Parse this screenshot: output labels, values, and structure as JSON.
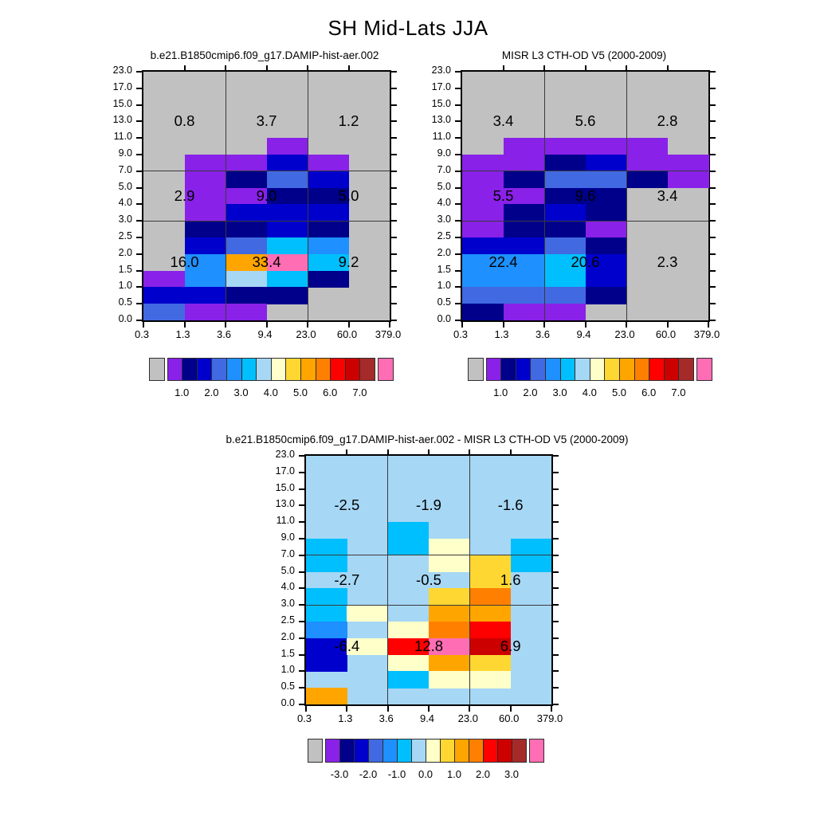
{
  "main_title": "SH Mid-Lats JJA",
  "palette": {
    "gray": "#C1C1C1",
    "purple": "#8921E8",
    "navy": "#00008B",
    "blue": "#0000CD",
    "royal": "#4169E1",
    "dodger": "#1E90FF",
    "deepsky": "#00BFFF",
    "lightblue": "#A6D7F5",
    "cream": "#FFFFC9",
    "gold": "#FFD732",
    "orange": "#FFA500",
    "darkorange": "#FF8000",
    "red": "#FE0000",
    "red3": "#CD0000",
    "brown": "#A52A2A",
    "pink": "#FF6EB4"
  },
  "colorbar_order": [
    "gray",
    "purple",
    "navy",
    "blue",
    "royal",
    "dodger",
    "deepsky",
    "lightblue",
    "cream",
    "gold",
    "orange",
    "darkorange",
    "red",
    "red3",
    "brown",
    "pink"
  ],
  "axes": {
    "x_ticks": [
      "0.3",
      "1.3",
      "3.6",
      "9.4",
      "23.0",
      "60.0",
      "379.0"
    ],
    "y_ticks": [
      "23.0",
      "17.0",
      "15.0",
      "13.0",
      "11.0",
      "9.0",
      "7.0",
      "5.0",
      "4.0",
      "3.0",
      "2.5",
      "2.0",
      "1.5",
      "1.0",
      "0.5",
      "0.0"
    ],
    "x_bin_edges": [
      0.3,
      1.3,
      3.6,
      9.4,
      23.0,
      60.0,
      379.0
    ],
    "y_bin_edges_bottom_up": [
      0.0,
      0.5,
      1.0,
      1.5,
      2.0,
      2.5,
      3.0,
      4.0,
      5.0,
      7.0,
      9.0,
      11.0,
      13.0,
      15.0,
      17.0,
      23.0
    ]
  },
  "chart_data": [
    {
      "type": "heatmap",
      "title": "b.e21.B1850cmip6.f09_g17.DAMIP-hist-aer.002",
      "background": "gray",
      "grid_rows_top_to_bottom": [
        [
          "gray",
          "gray",
          "gray",
          "gray",
          "gray",
          "gray"
        ],
        [
          "gray",
          "gray",
          "gray",
          "gray",
          "gray",
          "gray"
        ],
        [
          "gray",
          "gray",
          "gray",
          "gray",
          "gray",
          "gray"
        ],
        [
          "gray",
          "gray",
          "gray",
          "gray",
          "gray",
          "gray"
        ],
        [
          "gray",
          "gray",
          "gray",
          "purple",
          "gray",
          "gray"
        ],
        [
          "gray",
          "purple",
          "purple",
          "blue",
          "purple",
          "gray"
        ],
        [
          "gray",
          "purple",
          "navy",
          "royal",
          "blue",
          "gray"
        ],
        [
          "gray",
          "purple",
          "purple",
          "navy",
          "navy",
          "gray"
        ],
        [
          "gray",
          "purple",
          "blue",
          "blue",
          "blue",
          "gray"
        ],
        [
          "gray",
          "navy",
          "navy",
          "blue",
          "navy",
          "gray"
        ],
        [
          "gray",
          "blue",
          "royal",
          "deepsky",
          "dodger",
          "gray"
        ],
        [
          "gray",
          "dodger",
          "orange",
          "pink",
          "deepsky",
          "gray"
        ],
        [
          "purple",
          "dodger",
          "lightblue",
          "deepsky",
          "navy",
          "gray"
        ],
        [
          "blue",
          "blue",
          "navy",
          "navy",
          "gray",
          "gray"
        ],
        [
          "royal",
          "purple",
          "purple",
          "gray",
          "gray",
          "gray"
        ]
      ],
      "overlays": [
        {
          "values": [
            "0.8",
            "3.7",
            "1.2"
          ]
        },
        {
          "values": [
            "2.9",
            "9.0",
            "5.0"
          ]
        },
        {
          "values": [
            "16.0",
            "33.4",
            "9.2"
          ]
        }
      ],
      "colorbar_labels": [
        "1.0",
        "2.0",
        "3.0",
        "4.0",
        "5.0",
        "6.0",
        "7.0"
      ]
    },
    {
      "type": "heatmap",
      "title": "MISR L3 CTH-OD V5 (2000-2009)",
      "background": "gray",
      "grid_rows_top_to_bottom": [
        [
          "gray",
          "gray",
          "gray",
          "gray",
          "gray",
          "gray"
        ],
        [
          "gray",
          "gray",
          "gray",
          "gray",
          "gray",
          "gray"
        ],
        [
          "gray",
          "gray",
          "gray",
          "gray",
          "gray",
          "gray"
        ],
        [
          "gray",
          "gray",
          "gray",
          "gray",
          "gray",
          "gray"
        ],
        [
          "gray",
          "purple",
          "purple",
          "purple",
          "purple",
          "gray"
        ],
        [
          "purple",
          "purple",
          "navy",
          "blue",
          "purple",
          "purple"
        ],
        [
          "purple",
          "navy",
          "royal",
          "royal",
          "navy",
          "purple"
        ],
        [
          "purple",
          "purple",
          "navy",
          "navy",
          "gray",
          "gray"
        ],
        [
          "purple",
          "navy",
          "blue",
          "navy",
          "gray",
          "gray"
        ],
        [
          "purple",
          "navy",
          "navy",
          "purple",
          "gray",
          "gray"
        ],
        [
          "blue",
          "blue",
          "royal",
          "navy",
          "gray",
          "gray"
        ],
        [
          "dodger",
          "dodger",
          "deepsky",
          "blue",
          "gray",
          "gray"
        ],
        [
          "dodger",
          "dodger",
          "deepsky",
          "blue",
          "gray",
          "gray"
        ],
        [
          "royal",
          "royal",
          "royal",
          "navy",
          "gray",
          "gray"
        ],
        [
          "navy",
          "purple",
          "purple",
          "gray",
          "gray",
          "gray"
        ]
      ],
      "overlays": [
        {
          "values": [
            "3.4",
            "5.6",
            "2.8"
          ]
        },
        {
          "values": [
            "5.5",
            "9.6",
            "3.4"
          ]
        },
        {
          "values": [
            "22.4",
            "20.6",
            "2.3"
          ]
        }
      ],
      "colorbar_labels": [
        "1.0",
        "2.0",
        "3.0",
        "4.0",
        "5.0",
        "6.0",
        "7.0"
      ]
    },
    {
      "type": "heatmap",
      "title": "b.e21.B1850cmip6.f09_g17.DAMIP-hist-aer.002 - MISR L3 CTH-OD V5 (2000-2009)",
      "background": "lightblue",
      "grid_rows_top_to_bottom": [
        [
          "lightblue",
          "lightblue",
          "lightblue",
          "lightblue",
          "lightblue",
          "lightblue"
        ],
        [
          "lightblue",
          "lightblue",
          "lightblue",
          "lightblue",
          "lightblue",
          "lightblue"
        ],
        [
          "lightblue",
          "lightblue",
          "lightblue",
          "lightblue",
          "lightblue",
          "lightblue"
        ],
        [
          "lightblue",
          "lightblue",
          "lightblue",
          "lightblue",
          "lightblue",
          "lightblue"
        ],
        [
          "lightblue",
          "lightblue",
          "deepsky",
          "lightblue",
          "lightblue",
          "lightblue"
        ],
        [
          "deepsky",
          "lightblue",
          "deepsky",
          "cream",
          "lightblue",
          "deepsky"
        ],
        [
          "deepsky",
          "lightblue",
          "lightblue",
          "cream",
          "gold",
          "deepsky"
        ],
        [
          "lightblue",
          "lightblue",
          "lightblue",
          "lightblue",
          "gold",
          "lightblue"
        ],
        [
          "deepsky",
          "lightblue",
          "lightblue",
          "gold",
          "darkorange",
          "lightblue"
        ],
        [
          "deepsky",
          "cream",
          "lightblue",
          "orange",
          "orange",
          "lightblue"
        ],
        [
          "dodger",
          "lightblue",
          "cream",
          "darkorange",
          "red",
          "lightblue"
        ],
        [
          "blue",
          "cream",
          "red",
          "pink",
          "red3",
          "lightblue"
        ],
        [
          "blue",
          "lightblue",
          "cream",
          "orange",
          "gold",
          "lightblue"
        ],
        [
          "lightblue",
          "lightblue",
          "deepsky",
          "cream",
          "cream",
          "lightblue"
        ],
        [
          "orange",
          "lightblue",
          "lightblue",
          "lightblue",
          "lightblue",
          "lightblue"
        ]
      ],
      "overlays": [
        {
          "values": [
            "-2.5",
            "-1.9",
            "-1.6"
          ]
        },
        {
          "values": [
            "-2.7",
            "-0.5",
            "1.6"
          ]
        },
        {
          "values": [
            "-6.4",
            "12.8",
            "6.9"
          ]
        }
      ],
      "colorbar_labels": [
        "-3.0",
        "-2.0",
        "-1.0",
        "0.0",
        "1.0",
        "2.0",
        "3.0"
      ]
    }
  ]
}
